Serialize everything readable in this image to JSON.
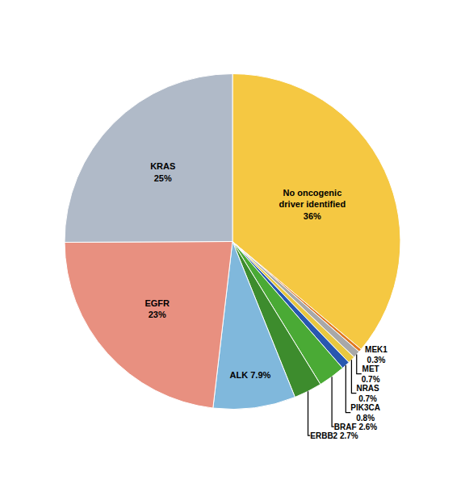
{
  "chart_data": {
    "type": "pie",
    "values": [
      36,
      0.3,
      0.7,
      0.7,
      0.8,
      2.6,
      2.7,
      7.9,
      23,
      25
    ],
    "value_labels": [
      "No oncogenic\ndriver identified\n36%",
      "MEK1\n0.3%",
      "MET\n0.7%",
      "NRAS\n0.7%",
      "PIK3CA\n0.8%",
      "BRAF 2.6%",
      "ERBB2 2.7%",
      "ALK 7.9%",
      "EGFR\n23%",
      "KRAS\n25%"
    ],
    "colors": [
      "#F5C842",
      "#E07820",
      "#A8A8A8",
      "#E8C840",
      "#2858B0",
      "#4AAA35",
      "#3D8C2D",
      "#80B8DC",
      "#E89080",
      "#B0BAC8"
    ]
  }
}
